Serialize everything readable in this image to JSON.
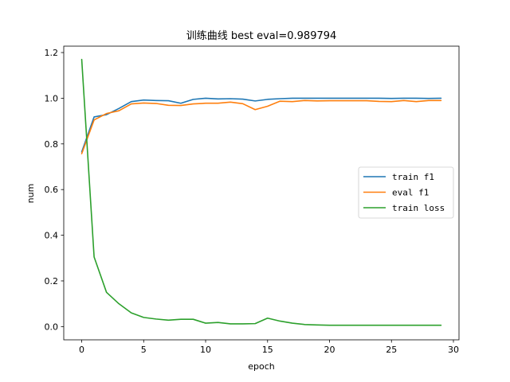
{
  "chart_data": {
    "type": "line",
    "title": "训练曲线 best eval=0.989794",
    "xlabel": "epoch",
    "ylabel": "num",
    "xlim": [
      -1.45,
      30.45
    ],
    "ylim": [
      -0.058,
      1.228
    ],
    "xticks": [
      0,
      5,
      10,
      15,
      20,
      25,
      30
    ],
    "yticks": [
      0.0,
      0.2,
      0.4,
      0.6,
      0.8,
      1.0,
      1.2
    ],
    "xtick_labels": [
      "0",
      "5",
      "10",
      "15",
      "20",
      "25",
      "30"
    ],
    "ytick_labels": [
      "0.0",
      "0.2",
      "0.4",
      "0.6",
      "0.8",
      "1.0",
      "1.2"
    ],
    "grid": false,
    "legend_position": "right",
    "x": [
      0,
      1,
      2,
      3,
      4,
      5,
      6,
      7,
      8,
      9,
      10,
      11,
      12,
      13,
      14,
      15,
      16,
      17,
      18,
      19,
      20,
      21,
      22,
      23,
      24,
      25,
      26,
      27,
      28,
      29
    ],
    "series": [
      {
        "name": "train f1",
        "color": "#1f77b4",
        "values": [
          0.765,
          0.918,
          0.928,
          0.955,
          0.985,
          0.992,
          0.99,
          0.989,
          0.978,
          0.995,
          1.0,
          0.997,
          0.998,
          0.996,
          0.988,
          0.995,
          0.998,
          1.0,
          1.0,
          1.0,
          1.0,
          1.0,
          1.0,
          1.0,
          1.0,
          0.999,
          1.0,
          1.0,
          0.999,
          1.0
        ]
      },
      {
        "name": "eval f1",
        "color": "#ff7f0e",
        "values": [
          0.757,
          0.905,
          0.933,
          0.945,
          0.975,
          0.979,
          0.977,
          0.969,
          0.968,
          0.975,
          0.978,
          0.978,
          0.983,
          0.976,
          0.95,
          0.965,
          0.987,
          0.985,
          0.99,
          0.988,
          0.989,
          0.989,
          0.989,
          0.989,
          0.986,
          0.985,
          0.99,
          0.985,
          0.99,
          0.99
        ]
      },
      {
        "name": "train loss",
        "color": "#2ca02c",
        "values": [
          1.17,
          0.305,
          0.15,
          0.1,
          0.06,
          0.04,
          0.033,
          0.028,
          0.032,
          0.032,
          0.015,
          0.018,
          0.012,
          0.012,
          0.013,
          0.037,
          0.024,
          0.015,
          0.009,
          0.007,
          0.006,
          0.006,
          0.006,
          0.006,
          0.006,
          0.006,
          0.006,
          0.006,
          0.006,
          0.006
        ]
      }
    ]
  }
}
